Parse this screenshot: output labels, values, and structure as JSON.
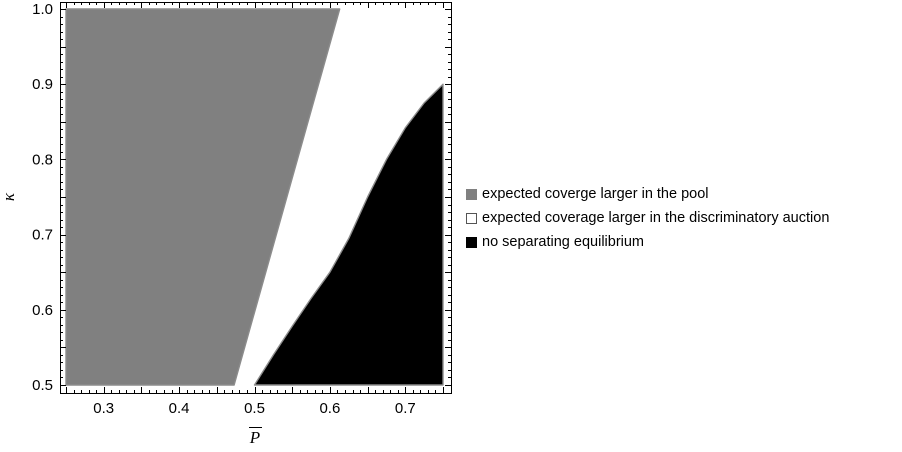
{
  "chart_data": {
    "type": "area",
    "xlabel": "P",
    "xlabel_overline": true,
    "ylabel": "κ",
    "xlim": [
      0.25,
      0.75
    ],
    "ylim": [
      0.5,
      1.0
    ],
    "xticks": [
      0.3,
      0.4,
      0.5,
      0.6,
      0.7
    ],
    "xtick_labels": [
      "0.3",
      "0.4",
      "0.5",
      "0.6",
      "0.7"
    ],
    "yticks": [
      0.5,
      0.6,
      0.7,
      0.8,
      0.9,
      1.0
    ],
    "ytick_labels": [
      "0.5",
      "0.6",
      "0.7",
      "0.8",
      "0.9",
      "1.0"
    ],
    "grid": false,
    "legend_position": "right",
    "regions": [
      {
        "name": "expected coverge larger in the pool",
        "color": "#808080",
        "boundary": [
          [
            0.25,
            0.5
          ],
          [
            0.473,
            0.5
          ],
          [
            0.613,
            1.0
          ],
          [
            0.25,
            1.0
          ]
        ]
      },
      {
        "name": "expected coverage larger in the discriminatory auction",
        "color": "#ffffff",
        "boundary": []
      },
      {
        "name": "no separating equilibrium",
        "color": "#000000",
        "boundary": [
          [
            0.5,
            0.5
          ],
          [
            0.525,
            0.54
          ],
          [
            0.55,
            0.578
          ],
          [
            0.575,
            0.615
          ],
          [
            0.6,
            0.65
          ],
          [
            0.625,
            0.695
          ],
          [
            0.65,
            0.75
          ],
          [
            0.675,
            0.8
          ],
          [
            0.7,
            0.842
          ],
          [
            0.725,
            0.875
          ],
          [
            0.75,
            0.9
          ],
          [
            0.75,
            0.5
          ]
        ]
      }
    ]
  }
}
